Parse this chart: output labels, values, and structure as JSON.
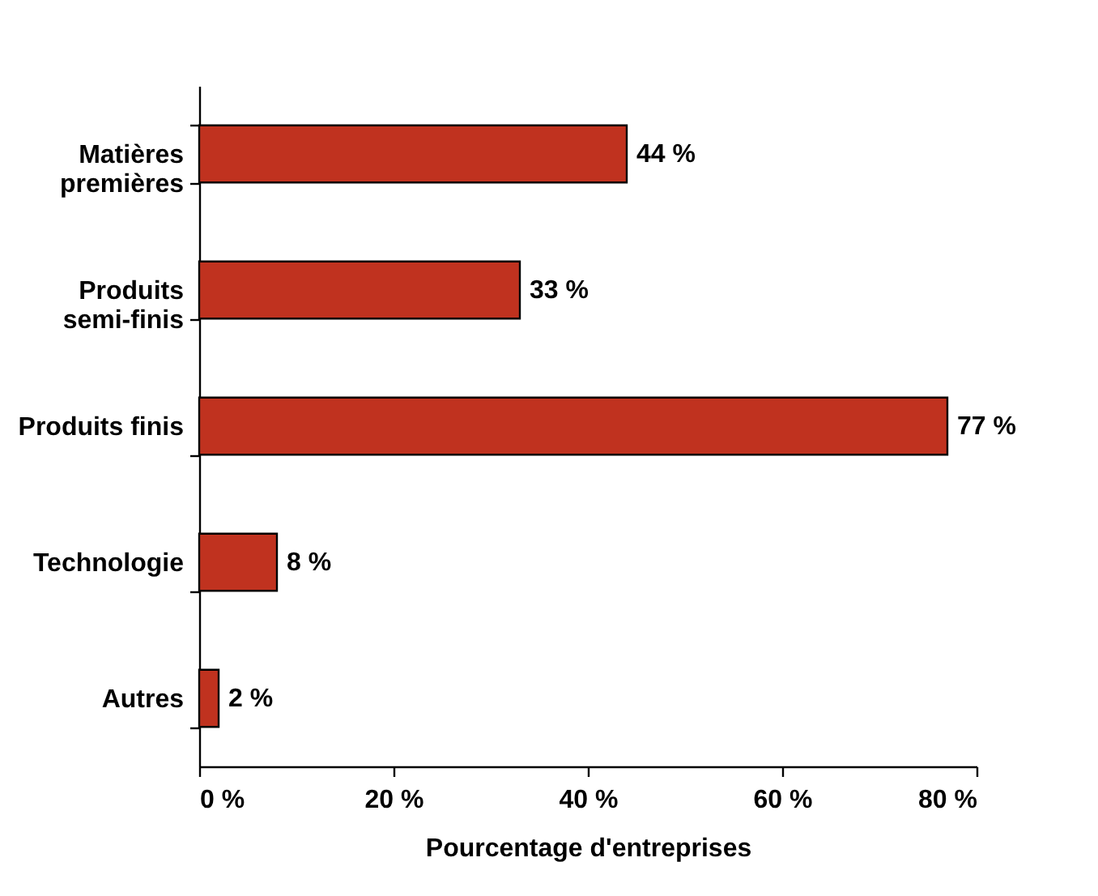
{
  "chart_data": {
    "type": "bar",
    "orientation": "horizontal",
    "xlabel": "Pourcentage d'entreprises",
    "categories": [
      "Matières premières",
      "Produits semi-finis",
      "Produits finis",
      "Technologie",
      "Autres"
    ],
    "values": [
      44,
      33,
      77,
      8,
      2
    ],
    "value_labels": [
      "44 %",
      "33 %",
      "77 %",
      "8 %",
      "2 %"
    ],
    "color": "#c0321f",
    "xlim": [
      0,
      80
    ],
    "xticks": [
      {
        "value": 0,
        "label": "0 %"
      },
      {
        "value": 20,
        "label": "20 %"
      },
      {
        "value": 40,
        "label": "40 %"
      },
      {
        "value": 60,
        "label": "60 %"
      },
      {
        "value": 80,
        "label": "80 %"
      }
    ],
    "grid": false
  }
}
